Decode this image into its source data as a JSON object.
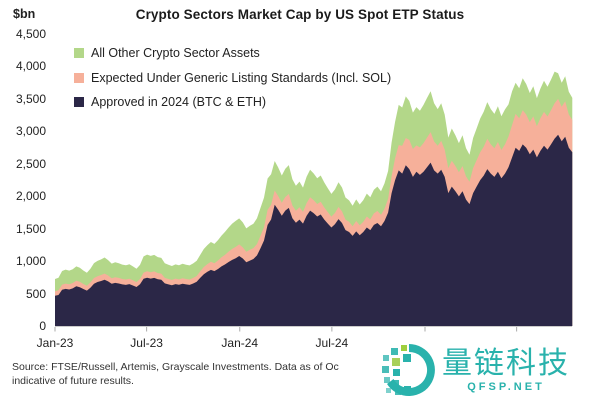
{
  "footer": {
    "source_line1": "Source: FTSE/Russell, Artemis, Grayscale Investments. Data as of Oc",
    "source_line2": "indicative of future results."
  },
  "watermark": {
    "brand": "量链科技",
    "site": "QFSP.NET",
    "color": "#29b2ac"
  },
  "legend": {
    "items": [
      {
        "label": "All Other Crypto Sector Assets",
        "color": "#b3d789"
      },
      {
        "label": "Expected Under Generic Listing Standards (Incl. SOL)",
        "color": "#f6b09a"
      },
      {
        "label": "Approved in 2024 (BTC & ETH)",
        "color": "#2b2747"
      }
    ]
  },
  "chart_data": {
    "type": "area",
    "stacked": true,
    "title": "Crypto Sectors Market Cap by US Spot ETP Status",
    "ylabel": "$bn",
    "ylim": [
      0,
      4500
    ],
    "grid": false,
    "legend_position": "top-left",
    "y_ticks": [
      "0",
      "500",
      "1,000",
      "1,500",
      "2,000",
      "2,500",
      "3,000",
      "3,500",
      "4,000",
      "4,500"
    ],
    "x_ticks": [
      {
        "label": "Jan-23",
        "day": 0
      },
      {
        "label": "Jul-23",
        "day": 181
      },
      {
        "label": "Jan-24",
        "day": 365
      },
      {
        "label": "Jul-24",
        "day": 547
      },
      {
        "label": "",
        "day": 731
      },
      {
        "label": "",
        "day": 912
      }
    ],
    "x_start": "2023-01-01",
    "x_interval_days": 7,
    "x_total_days": 1022,
    "series": [
      {
        "name": "Approved in 2024 (BTC & ETH)",
        "color": "#2b2747",
        "values": [
          465,
          478,
          558,
          572,
          563,
          580,
          612,
          598,
          570,
          546,
          590,
          652,
          678,
          694,
          712,
          688,
          652,
          664,
          655,
          641,
          634,
          645,
          624,
          601,
          642,
          728,
          744,
          731,
          741,
          720,
          714,
          656,
          641,
          629,
          646,
          635,
          651,
          641,
          634,
          655,
          681,
          744,
          799,
          836,
          864,
          846,
          879,
          918,
          949,
          986,
          1018,
          1044,
          1078,
          1040,
          982,
          1008,
          1032,
          1088,
          1198,
          1318,
          1558,
          1642,
          1868,
          1792,
          1700,
          1778,
          1820,
          1662,
          1590,
          1640,
          1578,
          1698,
          1778,
          1740,
          1688,
          1718,
          1640,
          1578,
          1518,
          1568,
          1648,
          1588,
          1478,
          1448,
          1388,
          1458,
          1398,
          1448,
          1518,
          1478,
          1558,
          1588,
          1538,
          1618,
          1748,
          2048,
          2248,
          2398,
          2348,
          2478,
          2418,
          2298,
          2378,
          2328,
          2378,
          2448,
          2518,
          2398,
          2348,
          2408,
          2298,
          2048,
          2148,
          2078,
          1998,
          2078,
          1948,
          1878,
          2048,
          2148,
          2248,
          2318,
          2418,
          2348,
          2298,
          2378,
          2278,
          2348,
          2448,
          2598,
          2748,
          2698,
          2798,
          2748,
          2648,
          2718,
          2598,
          2698,
          2778,
          2718,
          2798,
          2888,
          2948,
          2848,
          2918,
          2748,
          2678
        ]
      },
      {
        "name": "Expected Under Generic Listing Standards (Incl. SOL)",
        "color": "#f6b09a",
        "values": [
          70,
          72,
          80,
          82,
          80,
          82,
          85,
          83,
          78,
          75,
          80,
          88,
          90,
          92,
          95,
          90,
          85,
          88,
          86,
          84,
          82,
          84,
          80,
          76,
          82,
          95,
          100,
          98,
          100,
          96,
          94,
          86,
          84,
          82,
          84,
          83,
          85,
          84,
          83,
          86,
          90,
          100,
          110,
          118,
          125,
          122,
          130,
          140,
          150,
          160,
          170,
          175,
          180,
          172,
          162,
          166,
          168,
          176,
          192,
          205,
          235,
          228,
          220,
          210,
          200,
          210,
          214,
          195,
          185,
          190,
          180,
          196,
          206,
          200,
          192,
          196,
          186,
          178,
          168,
          174,
          186,
          178,
          162,
          158,
          150,
          160,
          154,
          160,
          170,
          165,
          178,
          184,
          176,
          190,
          210,
          260,
          340,
          390,
          430,
          420,
          450,
          430,
          405,
          425,
          440,
          455,
          470,
          445,
          430,
          445,
          420,
          385,
          400,
          388,
          370,
          388,
          358,
          345,
          385,
          405,
          430,
          445,
          468,
          450,
          440,
          458,
          435,
          450,
          472,
          500,
          520,
          505,
          528,
          512,
          495,
          512,
          482,
          505,
          522,
          510,
          528,
          545,
          552,
          532,
          545,
          512,
          498
        ]
      },
      {
        "name": "All Other Crypto Sector Assets",
        "color": "#b3d789",
        "values": [
          190,
          193,
          210,
          215,
          210,
          214,
          222,
          218,
          208,
          200,
          212,
          230,
          236,
          240,
          248,
          238,
          225,
          230,
          226,
          222,
          219,
          222,
          214,
          204,
          218,
          250,
          256,
          251,
          254,
          246,
          242,
          224,
          218,
          214,
          220,
          217,
          222,
          219,
          217,
          224,
          234,
          255,
          278,
          292,
          305,
          298,
          315,
          335,
          355,
          372,
          390,
          400,
          400,
          385,
          360,
          370,
          375,
          395,
          430,
          455,
          480,
          470,
          455,
          440,
          420,
          435,
          445,
          405,
          385,
          395,
          375,
          405,
          425,
          412,
          398,
          405,
          385,
          368,
          350,
          362,
          382,
          368,
          340,
          330,
          315,
          333,
          320,
          333,
          352,
          342,
          365,
          376,
          364,
          390,
          430,
          520,
          560,
          620,
          590,
          640,
          600,
          560,
          590,
          565,
          590,
          610,
          630,
          590,
          565,
          580,
          540,
          470,
          495,
          475,
          450,
          475,
          435,
          415,
          465,
          490,
          520,
          540,
          565,
          545,
          530,
          552,
          520,
          540,
          495,
          520,
          480,
          462,
          492,
          470,
          448,
          465,
          432,
          455,
          478,
          458,
          472,
          488,
          395,
          370,
          385,
          350,
          340
        ]
      }
    ]
  }
}
